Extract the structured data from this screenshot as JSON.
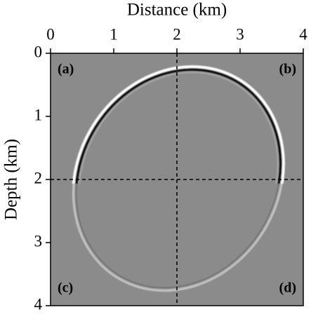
{
  "chart_data": {
    "type": "image",
    "xlabel": "Distance (km)",
    "ylabel": "Depth (km)",
    "xlim": [
      0,
      4
    ],
    "ylim": [
      0,
      4
    ],
    "y_inverted": true,
    "xticks": [
      0,
      1,
      2,
      3,
      4
    ],
    "yticks": [
      0,
      1,
      2,
      3,
      4
    ],
    "vlines": [
      2
    ],
    "hlines": [
      2
    ],
    "panel_labels": [
      "(a)",
      "(b)",
      "(c)",
      "(d)"
    ]
  }
}
